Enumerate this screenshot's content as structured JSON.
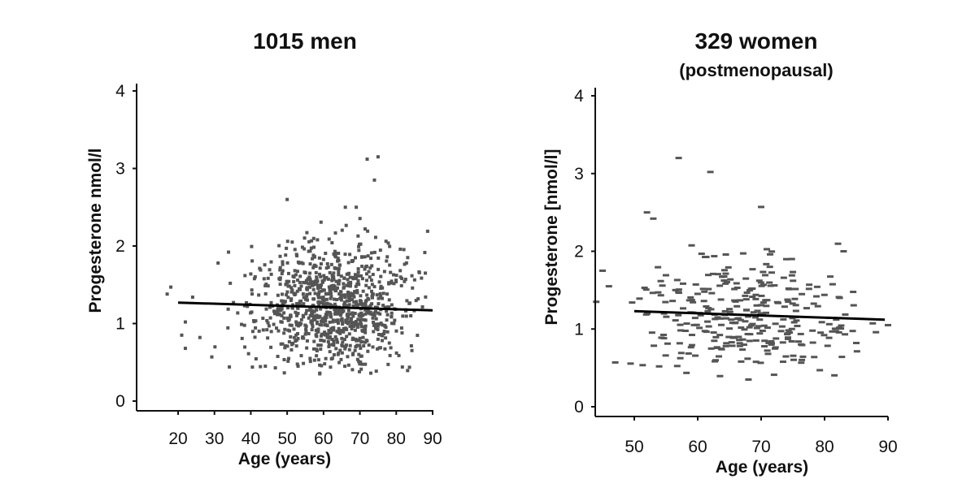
{
  "colors": {
    "points": "#555555",
    "trend": "#000000",
    "axis": "#111111"
  },
  "chart_data": [
    {
      "type": "scatter",
      "title": "1015 men",
      "subtitle": "",
      "xlabel": "Age (years)",
      "ylabel": "Progesterone nmol/l",
      "xlim": [
        11,
        92
      ],
      "ylim": [
        -0.1,
        4.1
      ],
      "xticks": [
        20,
        30,
        40,
        50,
        60,
        70,
        80,
        90
      ],
      "yticks": [
        0,
        1,
        2,
        3,
        4
      ],
      "n_points": 1015,
      "age_range": [
        17,
        89
      ],
      "notable_points": [
        {
          "x": 17,
          "y": 1.38
        },
        {
          "x": 18,
          "y": 1.47
        },
        {
          "x": 21,
          "y": 0.85
        },
        {
          "x": 22,
          "y": 1.02
        },
        {
          "x": 22,
          "y": 0.68
        },
        {
          "x": 24,
          "y": 1.34
        },
        {
          "x": 26,
          "y": 0.82
        },
        {
          "x": 31,
          "y": 1.78
        },
        {
          "x": 44,
          "y": 0.45
        },
        {
          "x": 50,
          "y": 2.6
        },
        {
          "x": 53,
          "y": 0.45
        },
        {
          "x": 59,
          "y": 0.36
        },
        {
          "x": 72,
          "y": 3.12
        },
        {
          "x": 75,
          "y": 3.15
        },
        {
          "x": 74,
          "y": 2.85
        },
        {
          "x": 69,
          "y": 2.5
        },
        {
          "x": 66,
          "y": 2.5
        },
        {
          "x": 73,
          "y": 0.36
        },
        {
          "x": 84,
          "y": 1.1
        },
        {
          "x": 88,
          "y": 1.65
        }
      ],
      "trend_line": {
        "x": [
          20,
          90
        ],
        "y": [
          1.27,
          1.17
        ]
      },
      "legend": ""
    },
    {
      "type": "scatter",
      "title": "329 women",
      "subtitle": "(postmenopausal)",
      "xlabel": "Age (years)",
      "ylabel": "Progesterone [nmol/l]",
      "xlim": [
        43.5,
        91
      ],
      "ylim": [
        -0.1,
        4.1
      ],
      "xticks": [
        50,
        60,
        70,
        80,
        90
      ],
      "yticks": [
        0,
        1,
        2,
        3,
        4
      ],
      "n_points": 329,
      "age_range": [
        44,
        90
      ],
      "notable_points": [
        {
          "x": 44,
          "y": 1.35
        },
        {
          "x": 45,
          "y": 1.75
        },
        {
          "x": 46,
          "y": 1.55
        },
        {
          "x": 47,
          "y": 0.57
        },
        {
          "x": 52,
          "y": 2.5
        },
        {
          "x": 53,
          "y": 2.42
        },
        {
          "x": 57,
          "y": 3.2
        },
        {
          "x": 62,
          "y": 3.02
        },
        {
          "x": 70,
          "y": 2.57
        },
        {
          "x": 68,
          "y": 0.35
        },
        {
          "x": 83,
          "y": 2.0
        },
        {
          "x": 85,
          "y": 0.82
        },
        {
          "x": 90,
          "y": 1.05
        }
      ],
      "trend_line": {
        "x": [
          50,
          89.5
        ],
        "y": [
          1.23,
          1.12
        ]
      },
      "legend": ""
    }
  ]
}
